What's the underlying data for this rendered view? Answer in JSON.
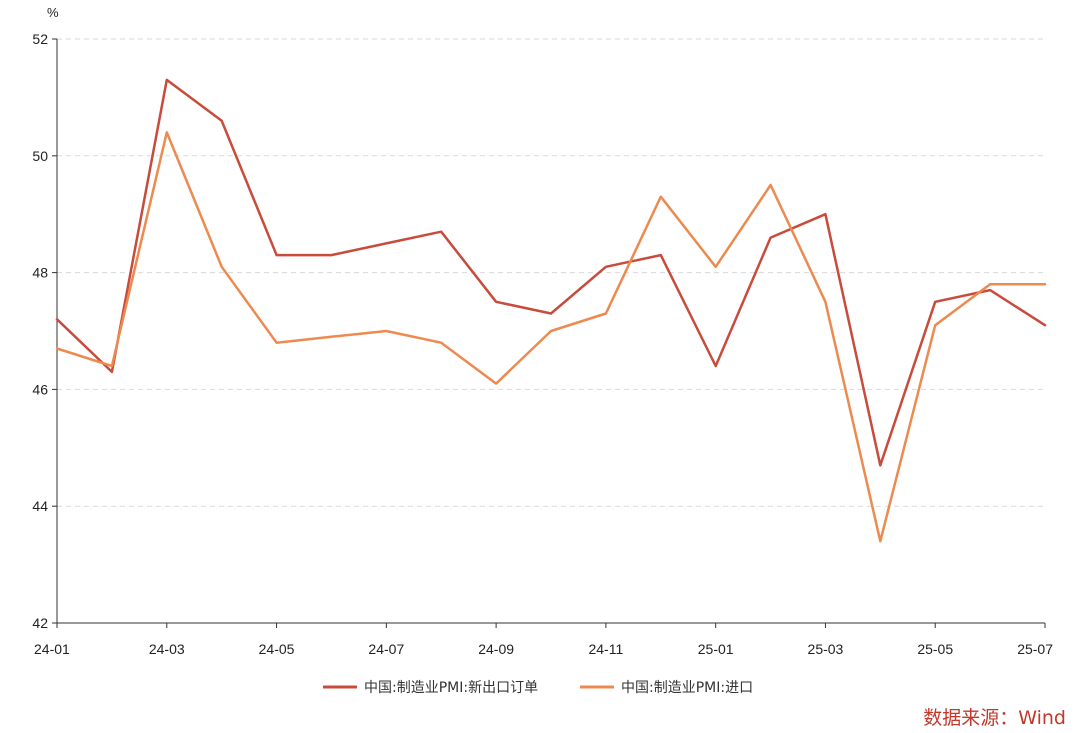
{
  "chart_data": {
    "type": "line",
    "unit_label": "%",
    "x": [
      "24-01",
      "24-02",
      "24-03",
      "24-04",
      "24-05",
      "24-06",
      "24-07",
      "24-08",
      "24-09",
      "24-10",
      "24-11",
      "24-12",
      "25-01",
      "25-02",
      "25-03",
      "25-04",
      "25-05",
      "25-06",
      "25-07"
    ],
    "x_tick_labels": [
      "24-01",
      "24-03",
      "24-05",
      "24-07",
      "24-09",
      "24-11",
      "25-01",
      "25-03",
      "25-05",
      "25-07"
    ],
    "y_ticks": [
      42,
      44,
      46,
      48,
      50,
      52
    ],
    "ylim": [
      42,
      52
    ],
    "grid": "horizontal-dashed",
    "legend_position": "bottom-center",
    "series": [
      {
        "name": "中国:制造业PMI:新出口订单",
        "color": "#c84b3c",
        "values": [
          47.2,
          46.3,
          51.3,
          50.6,
          48.3,
          48.3,
          48.5,
          48.7,
          47.5,
          47.3,
          48.1,
          48.3,
          46.4,
          48.6,
          49.0,
          44.7,
          47.5,
          47.7,
          47.1
        ]
      },
      {
        "name": "中国:制造业PMI:进口",
        "color": "#ec8a4f",
        "values": [
          46.7,
          46.4,
          50.4,
          48.1,
          46.8,
          46.9,
          47.0,
          46.8,
          46.1,
          47.0,
          47.3,
          49.3,
          48.1,
          49.5,
          47.5,
          43.4,
          47.1,
          47.8,
          47.8
        ]
      }
    ],
    "source": "数据来源：Wind"
  }
}
